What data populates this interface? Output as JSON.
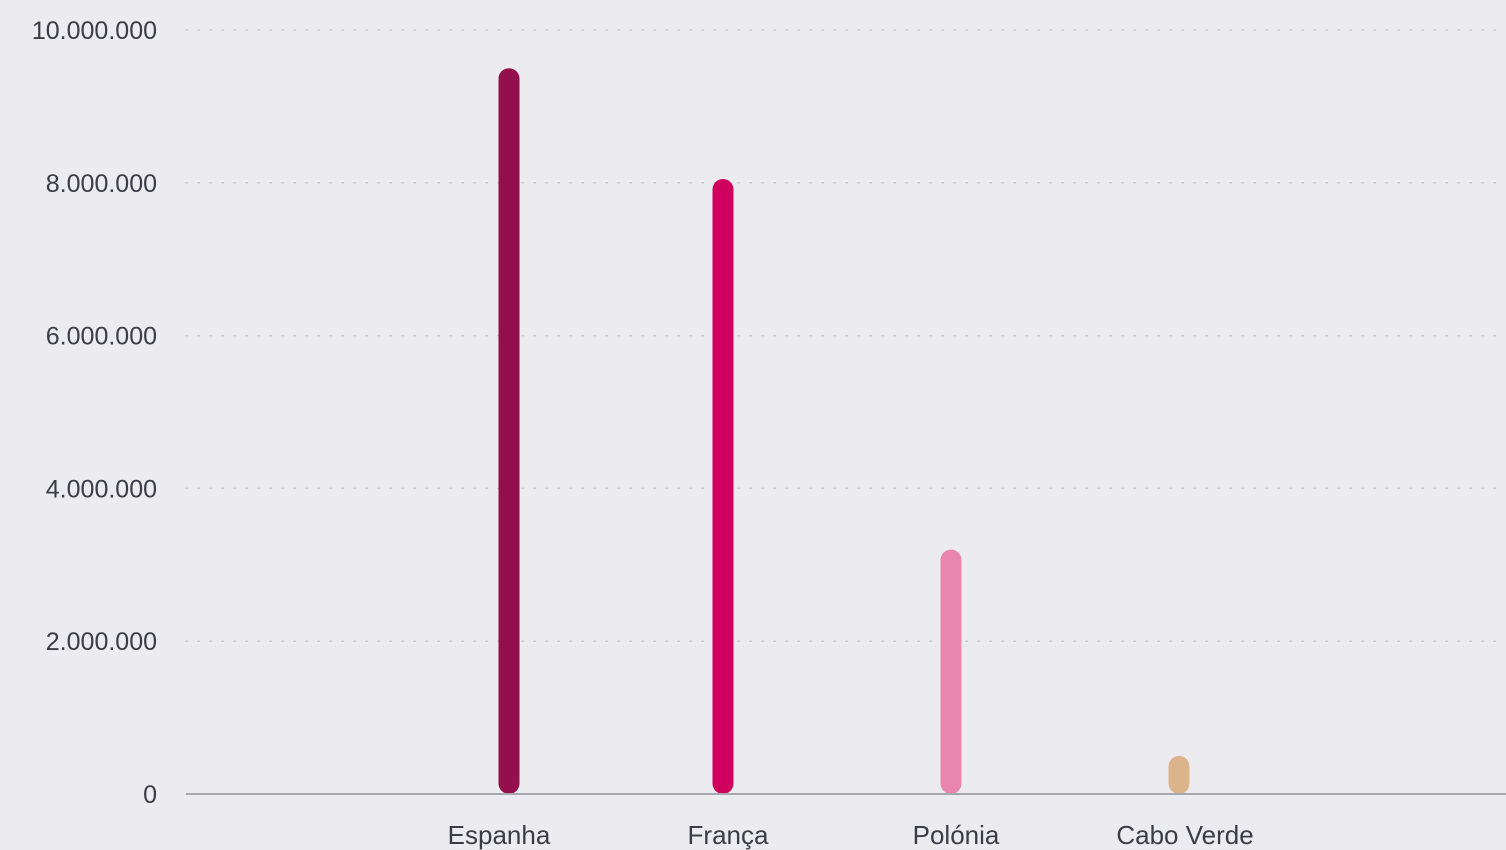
{
  "chart_data": {
    "type": "bar",
    "title": "",
    "xlabel": "",
    "ylabel": "",
    "categories": [
      "Espanha",
      "França",
      "Polónia",
      "Cabo Verde"
    ],
    "values": [
      9500000,
      8050000,
      3200000,
      500000
    ],
    "colors": [
      "#93104c",
      "#d0005e",
      "#e886ae",
      "#dcb48c"
    ],
    "ylim": [
      0,
      10000000
    ],
    "yticks": [
      {
        "value": 0,
        "label": "0"
      },
      {
        "value": 2000000,
        "label": "2.000.000"
      },
      {
        "value": 4000000,
        "label": "4.000.000"
      },
      {
        "value": 6000000,
        "label": "6.000.000"
      },
      {
        "value": 8000000,
        "label": "8.000.000"
      },
      {
        "value": 10000000,
        "label": "10.000.000"
      }
    ],
    "grid": true,
    "legend": "none"
  }
}
